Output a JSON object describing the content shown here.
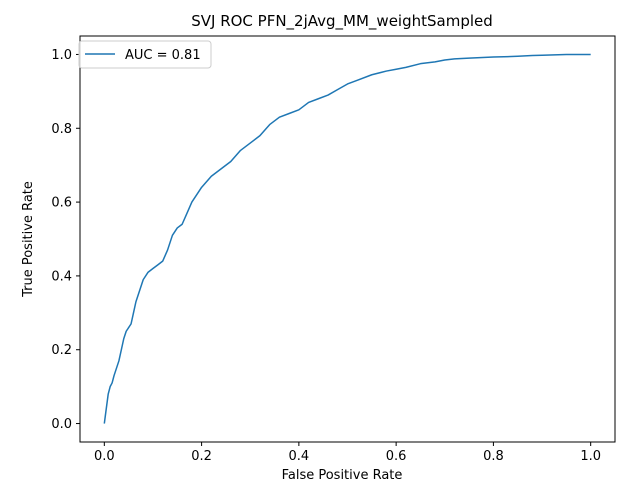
{
  "chart_data": {
    "type": "line",
    "title": "SVJ  ROC PFN_2jAvg_MM_weightSampled",
    "xlabel": "False Positive Rate",
    "ylabel": "True Positive Rate",
    "xlim": [
      -0.05,
      1.05
    ],
    "ylim": [
      -0.05,
      1.05
    ],
    "xticks": [
      "0.0",
      "0.2",
      "0.4",
      "0.6",
      "0.8",
      "1.0"
    ],
    "yticks": [
      "0.0",
      "0.2",
      "0.4",
      "0.6",
      "0.8",
      "1.0"
    ],
    "grid": false,
    "legend_position": "upper-left",
    "series": [
      {
        "name": "AUC = 0.81",
        "color": "#1f77b4",
        "x": [
          0.0,
          0.002,
          0.004,
          0.006,
          0.008,
          0.012,
          0.016,
          0.02,
          0.025,
          0.03,
          0.035,
          0.04,
          0.045,
          0.05,
          0.055,
          0.06,
          0.065,
          0.07,
          0.08,
          0.09,
          0.1,
          0.11,
          0.12,
          0.13,
          0.14,
          0.15,
          0.16,
          0.17,
          0.18,
          0.19,
          0.2,
          0.22,
          0.24,
          0.26,
          0.28,
          0.3,
          0.32,
          0.34,
          0.36,
          0.38,
          0.4,
          0.42,
          0.44,
          0.46,
          0.48,
          0.5,
          0.52,
          0.55,
          0.58,
          0.6,
          0.62,
          0.65,
          0.68,
          0.7,
          0.72,
          0.75,
          0.8,
          0.85,
          0.88,
          0.9,
          0.95,
          1.0
        ],
        "y": [
          0.0,
          0.02,
          0.04,
          0.06,
          0.08,
          0.1,
          0.11,
          0.13,
          0.15,
          0.17,
          0.2,
          0.23,
          0.25,
          0.26,
          0.27,
          0.3,
          0.33,
          0.35,
          0.39,
          0.41,
          0.42,
          0.43,
          0.44,
          0.47,
          0.51,
          0.53,
          0.54,
          0.57,
          0.6,
          0.62,
          0.64,
          0.67,
          0.69,
          0.71,
          0.74,
          0.76,
          0.78,
          0.81,
          0.83,
          0.84,
          0.85,
          0.87,
          0.88,
          0.89,
          0.905,
          0.92,
          0.93,
          0.945,
          0.955,
          0.96,
          0.965,
          0.975,
          0.98,
          0.985,
          0.988,
          0.99,
          0.993,
          0.995,
          0.997,
          0.998,
          1.0,
          1.0
        ]
      }
    ]
  }
}
